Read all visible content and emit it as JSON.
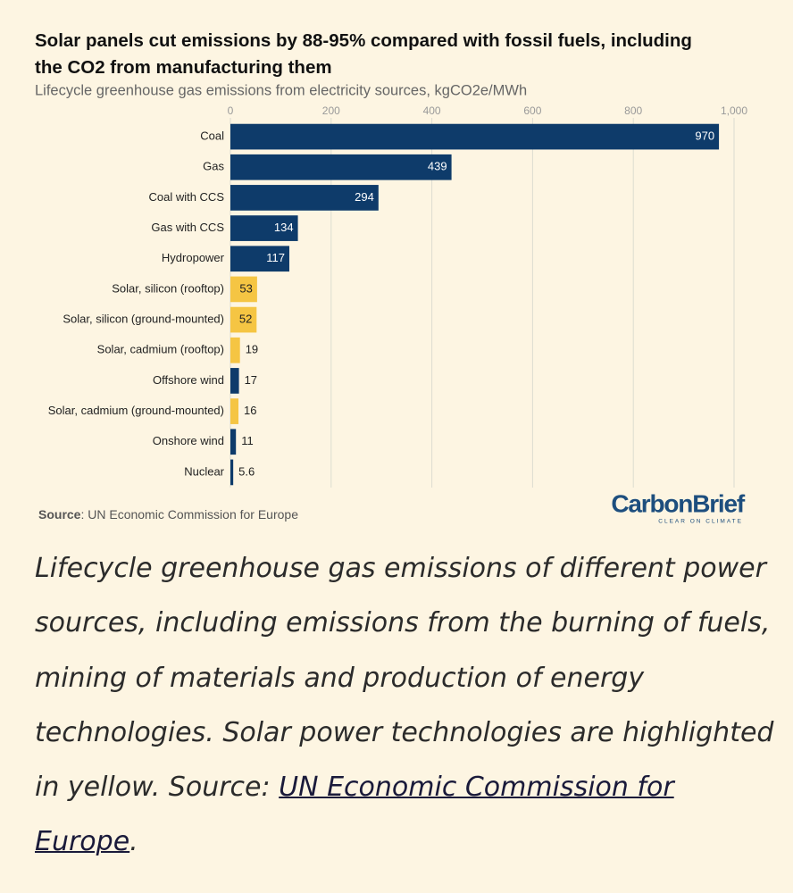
{
  "chart_data": {
    "type": "bar",
    "orientation": "horizontal",
    "title": "Solar panels cut emissions by 88-95% compared with fossil fuels, including the CO2 from manufacturing them",
    "subtitle": "Lifecycle greenhouse gas emissions from electricity sources, kgCO2e/MWh",
    "categories": [
      "Coal",
      "Gas",
      "Coal with CCS",
      "Gas with CCS",
      "Hydropower",
      "Solar, silicon (rooftop)",
      "Solar, silicon (ground-mounted)",
      "Solar, cadmium (rooftop)",
      "Offshore wind",
      "Solar, cadmium (ground-mounted)",
      "Onshore wind",
      "Nuclear"
    ],
    "values": [
      970,
      439,
      294,
      134,
      117,
      53,
      52,
      19,
      17,
      16,
      11,
      5.6
    ],
    "colors": [
      "#0e3b6a",
      "#0e3b6a",
      "#0e3b6a",
      "#0e3b6a",
      "#0e3b6a",
      "#f5c543",
      "#f5c543",
      "#f5c543",
      "#0e3b6a",
      "#f5c543",
      "#0e3b6a",
      "#0e3b6a"
    ],
    "xlim": [
      0,
      1000
    ],
    "xticks": [
      0,
      200,
      400,
      600,
      800,
      {
        "value": 1000,
        "label": "1,000"
      }
    ],
    "grid": true,
    "source": {
      "label": "Source",
      "text": ": UN Economic Commission for Europe"
    },
    "logo": {
      "name": "CarbonBrief",
      "tagline": "CLEAR ON CLIMATE"
    }
  },
  "caption": {
    "text": "Lifecycle greenhouse gas emissions of different power sources, including emissions from the burning of fuels, mining of materials and production of energy technologies. Solar power technologies are highlighted in yellow. Source: ",
    "link": "UN Economic Commission for Europe",
    "end": "."
  }
}
